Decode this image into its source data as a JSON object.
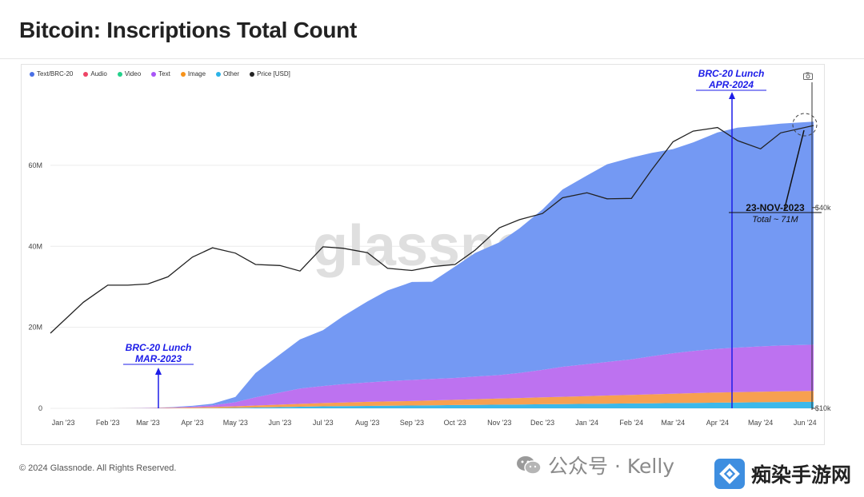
{
  "title": "Bitcoin: Inscriptions Total Count",
  "footer": "© 2024 Glassnode. All Rights Reserved.",
  "watermark": "glassnode",
  "overlay": {
    "wechat_text": "公众号 · Kelly",
    "site_name": "痴染手游网"
  },
  "colors": {
    "brc20": "#7499f3",
    "audio": "#ee4466",
    "video": "#23d18b",
    "text": "#bd72f0",
    "image": "#f7a050",
    "other": "#3bb8ea",
    "price": "#222222",
    "annotation": "#1c1ce8"
  },
  "icons": {
    "camera": "camera-icon",
    "wechat": "wechat-icon",
    "site": "site-logo-icon"
  },
  "chart_data": {
    "type": "area",
    "title": "Bitcoin: Inscriptions Total Count",
    "x_tick_labels": [
      "Jan '23",
      "Feb '23",
      "Mar '23",
      "Apr '23",
      "May '23",
      "Jun '23",
      "Jul '23",
      "Aug '23",
      "Sep '23",
      "Oct '23",
      "Nov '23",
      "Dec '23",
      "Jan '24",
      "Feb '24",
      "Mar '24",
      "Apr '24",
      "May '24",
      "Jun '24"
    ],
    "x_range": [
      "2022-12-23",
      "2024-06-07"
    ],
    "y_left": {
      "ticks": [
        "0",
        "20M",
        "40M",
        "60M"
      ],
      "tick_values": [
        0,
        20000000,
        40000000,
        60000000
      ],
      "range": [
        0,
        80500000
      ]
    },
    "y_right": {
      "scale": "log",
      "ticks": [
        "$10k",
        "$40k"
      ],
      "tick_values": [
        10000,
        40000
      ],
      "range": [
        10000,
        95000
      ]
    },
    "legend": [
      {
        "name": "Text/BRC-20",
        "color": "#4a70e6"
      },
      {
        "name": "Audio",
        "color": "#ee4466"
      },
      {
        "name": "Video",
        "color": "#23d18b"
      },
      {
        "name": "Text",
        "color": "#a855f7"
      },
      {
        "name": "Image",
        "color": "#f7931a"
      },
      {
        "name": "Other",
        "color": "#2bb3e8"
      },
      {
        "name": "Price [USD]",
        "color": "#222222"
      }
    ],
    "legend_position": "top-left",
    "grid": true,
    "x": [
      "2022-12-23",
      "2023-01-15",
      "2023-02-01",
      "2023-02-15",
      "2023-03-01",
      "2023-03-15",
      "2023-04-01",
      "2023-04-15",
      "2023-05-01",
      "2023-05-15",
      "2023-06-01",
      "2023-06-15",
      "2023-07-01",
      "2023-07-15",
      "2023-08-01",
      "2023-08-15",
      "2023-09-01",
      "2023-09-15",
      "2023-10-01",
      "2023-10-15",
      "2023-11-01",
      "2023-11-15",
      "2023-12-01",
      "2023-12-15",
      "2024-01-01",
      "2024-01-15",
      "2024-02-01",
      "2024-02-15",
      "2024-03-01",
      "2024-03-15",
      "2024-04-01",
      "2024-04-15",
      "2024-05-01",
      "2024-05-15",
      "2024-06-07"
    ],
    "series": [
      {
        "name": "Other",
        "stack": true,
        "values": [
          0,
          0,
          0,
          0,
          0,
          0,
          0.02,
          0.05,
          0.1,
          0.2,
          0.3,
          0.4,
          0.5,
          0.55,
          0.6,
          0.65,
          0.7,
          0.75,
          0.8,
          0.85,
          0.9,
          0.95,
          1.0,
          1.05,
          1.1,
          1.15,
          1.2,
          1.25,
          1.3,
          1.35,
          1.4,
          1.45,
          1.5,
          1.55,
          1.6
        ]
      },
      {
        "name": "Image",
        "stack": true,
        "values": [
          0,
          0,
          0,
          0.02,
          0.05,
          0.1,
          0.2,
          0.3,
          0.4,
          0.5,
          0.6,
          0.7,
          0.8,
          0.9,
          1.0,
          1.05,
          1.1,
          1.2,
          1.3,
          1.4,
          1.5,
          1.6,
          1.7,
          1.8,
          1.9,
          2.0,
          2.1,
          2.2,
          2.3,
          2.4,
          2.5,
          2.55,
          2.6,
          2.65,
          2.7
        ]
      },
      {
        "name": "Text",
        "stack": true,
        "values": [
          0,
          0,
          0,
          0,
          0.05,
          0.1,
          0.2,
          0.4,
          1.0,
          2.0,
          3.0,
          3.8,
          4.2,
          4.5,
          4.8,
          5.0,
          5.2,
          5.3,
          5.4,
          5.6,
          5.8,
          6.2,
          6.8,
          7.4,
          7.9,
          8.3,
          8.8,
          9.4,
          10.0,
          10.4,
          10.8,
          11.0,
          11.2,
          11.3,
          11.4
        ]
      },
      {
        "name": "Text/BRC-20",
        "stack": true,
        "values": [
          0,
          0,
          0,
          0.01,
          0.02,
          0.05,
          0.2,
          0.4,
          1.3,
          6.0,
          9.4,
          12.1,
          13.8,
          16.8,
          20.0,
          22.4,
          24.2,
          24.0,
          27.5,
          30.5,
          32.8,
          35.7,
          39.6,
          43.8,
          46.6,
          48.8,
          49.8,
          50.2,
          50.4,
          51.5,
          53.4,
          54.3,
          54.5,
          54.8,
          55.1
        ]
      },
      {
        "name": "Audio",
        "stack": true,
        "values": [
          0,
          0,
          0,
          0,
          0,
          0,
          0,
          0,
          0,
          0,
          0,
          0,
          0,
          0,
          0,
          0,
          0,
          0,
          0,
          0,
          0,
          0,
          0,
          0,
          0,
          0,
          0,
          0,
          0,
          0,
          0,
          0,
          0,
          0,
          0
        ]
      },
      {
        "name": "Video",
        "stack": true,
        "values": [
          0,
          0,
          0,
          0,
          0,
          0,
          0,
          0,
          0,
          0,
          0,
          0,
          0,
          0,
          0,
          0,
          0,
          0,
          0,
          0,
          0,
          0,
          0,
          0,
          0,
          0,
          0,
          0,
          0,
          0,
          0,
          0,
          0,
          0,
          0
        ]
      },
      {
        "name": "Price [USD]",
        "axis": "right",
        "values": [
          16800,
          20800,
          23400,
          23400,
          23600,
          24800,
          28400,
          30300,
          29200,
          27000,
          26800,
          25800,
          30500,
          30200,
          29300,
          26300,
          25900,
          26600,
          27000,
          29800,
          34800,
          36800,
          38400,
          42800,
          44300,
          42500,
          42600,
          51800,
          63000,
          67800,
          69500,
          63500,
          60000,
          67000,
          70500
        ]
      }
    ],
    "y_units": "millions"
  },
  "annotations": {
    "top_label_1": "BRC-20 Lunch",
    "top_label_2": "APR-2024",
    "bottom_label_1": "BRC-20 Lunch",
    "bottom_label_2": "MAR-2023",
    "callout_1": "23-NOV-2023",
    "callout_2": "Total ~ 71M"
  }
}
